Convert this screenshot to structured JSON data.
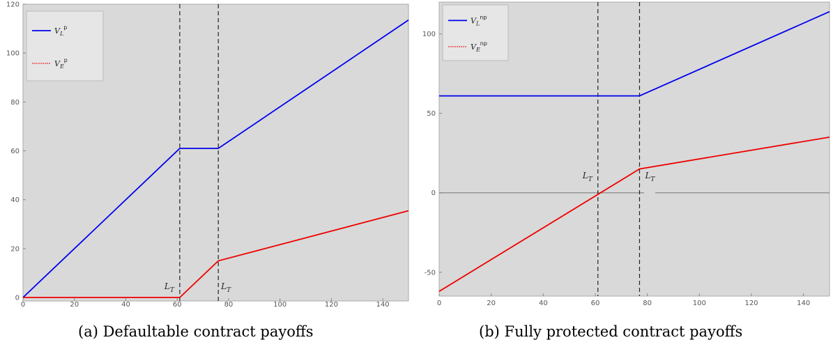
{
  "charts_meta": {
    "colors": {
      "blue": "#0000ee",
      "red": "#ee0000",
      "background": "#d9d9d9",
      "dashed": "#222222",
      "axis": "#888888"
    }
  },
  "captions": {
    "a": "(a) Defaultable contract payoffs",
    "b": "(b) Fully protected contract payoffs"
  },
  "chart_data": [
    {
      "type": "line",
      "title": "",
      "xlabel": "",
      "ylabel": "",
      "xlim": [
        0,
        150
      ],
      "ylim": [
        0,
        120
      ],
      "xticks": [
        0,
        20,
        40,
        60,
        80,
        100,
        120,
        140
      ],
      "yticks": [
        0,
        20,
        40,
        60,
        80,
        100,
        120
      ],
      "grid": false,
      "legend_position": "top-left",
      "series": [
        {
          "legend_base": "V",
          "legend_sub": "L",
          "legend_sup": "p",
          "color": "#0000ee",
          "x": [
            0,
            61,
            76,
            150
          ],
          "y": [
            0,
            61,
            61,
            113.5
          ]
        },
        {
          "legend_base": "V",
          "legend_sub": "E",
          "legend_sup": "p",
          "color": "#ee0000",
          "x": [
            0,
            61,
            76,
            150
          ],
          "y": [
            0,
            0,
            15,
            35.5
          ]
        }
      ],
      "vlines": [
        61,
        76
      ],
      "annotations": [
        {
          "base": "L",
          "sub": "T",
          "x": 61
        },
        {
          "base": "L",
          "sub": "T",
          "x": 76
        }
      ]
    },
    {
      "type": "line",
      "title": "",
      "xlabel": "",
      "ylabel": "",
      "xlim": [
        0,
        150
      ],
      "ylim": [
        -65,
        120
      ],
      "xticks": [
        0,
        20,
        40,
        60,
        80,
        100,
        120,
        140
      ],
      "yticks": [
        -50,
        0,
        50,
        100
      ],
      "grid": false,
      "legend_position": "top-left",
      "series": [
        {
          "legend_base": "V",
          "legend_sub": "L",
          "legend_sup": "np",
          "color": "#0000ee",
          "x": [
            0,
            77,
            150
          ],
          "y": [
            61,
            61,
            114
          ]
        },
        {
          "legend_base": "V",
          "legend_sub": "E",
          "legend_sup": "np",
          "color": "#ee0000",
          "x": [
            0,
            77,
            150
          ],
          "y": [
            -62,
            15,
            35
          ]
        }
      ],
      "vlines": [
        61,
        77
      ],
      "annotations": [
        {
          "base": "L",
          "sub": "T",
          "x": 61
        },
        {
          "base": "L",
          "sub": "T",
          "x": 77
        }
      ]
    }
  ]
}
